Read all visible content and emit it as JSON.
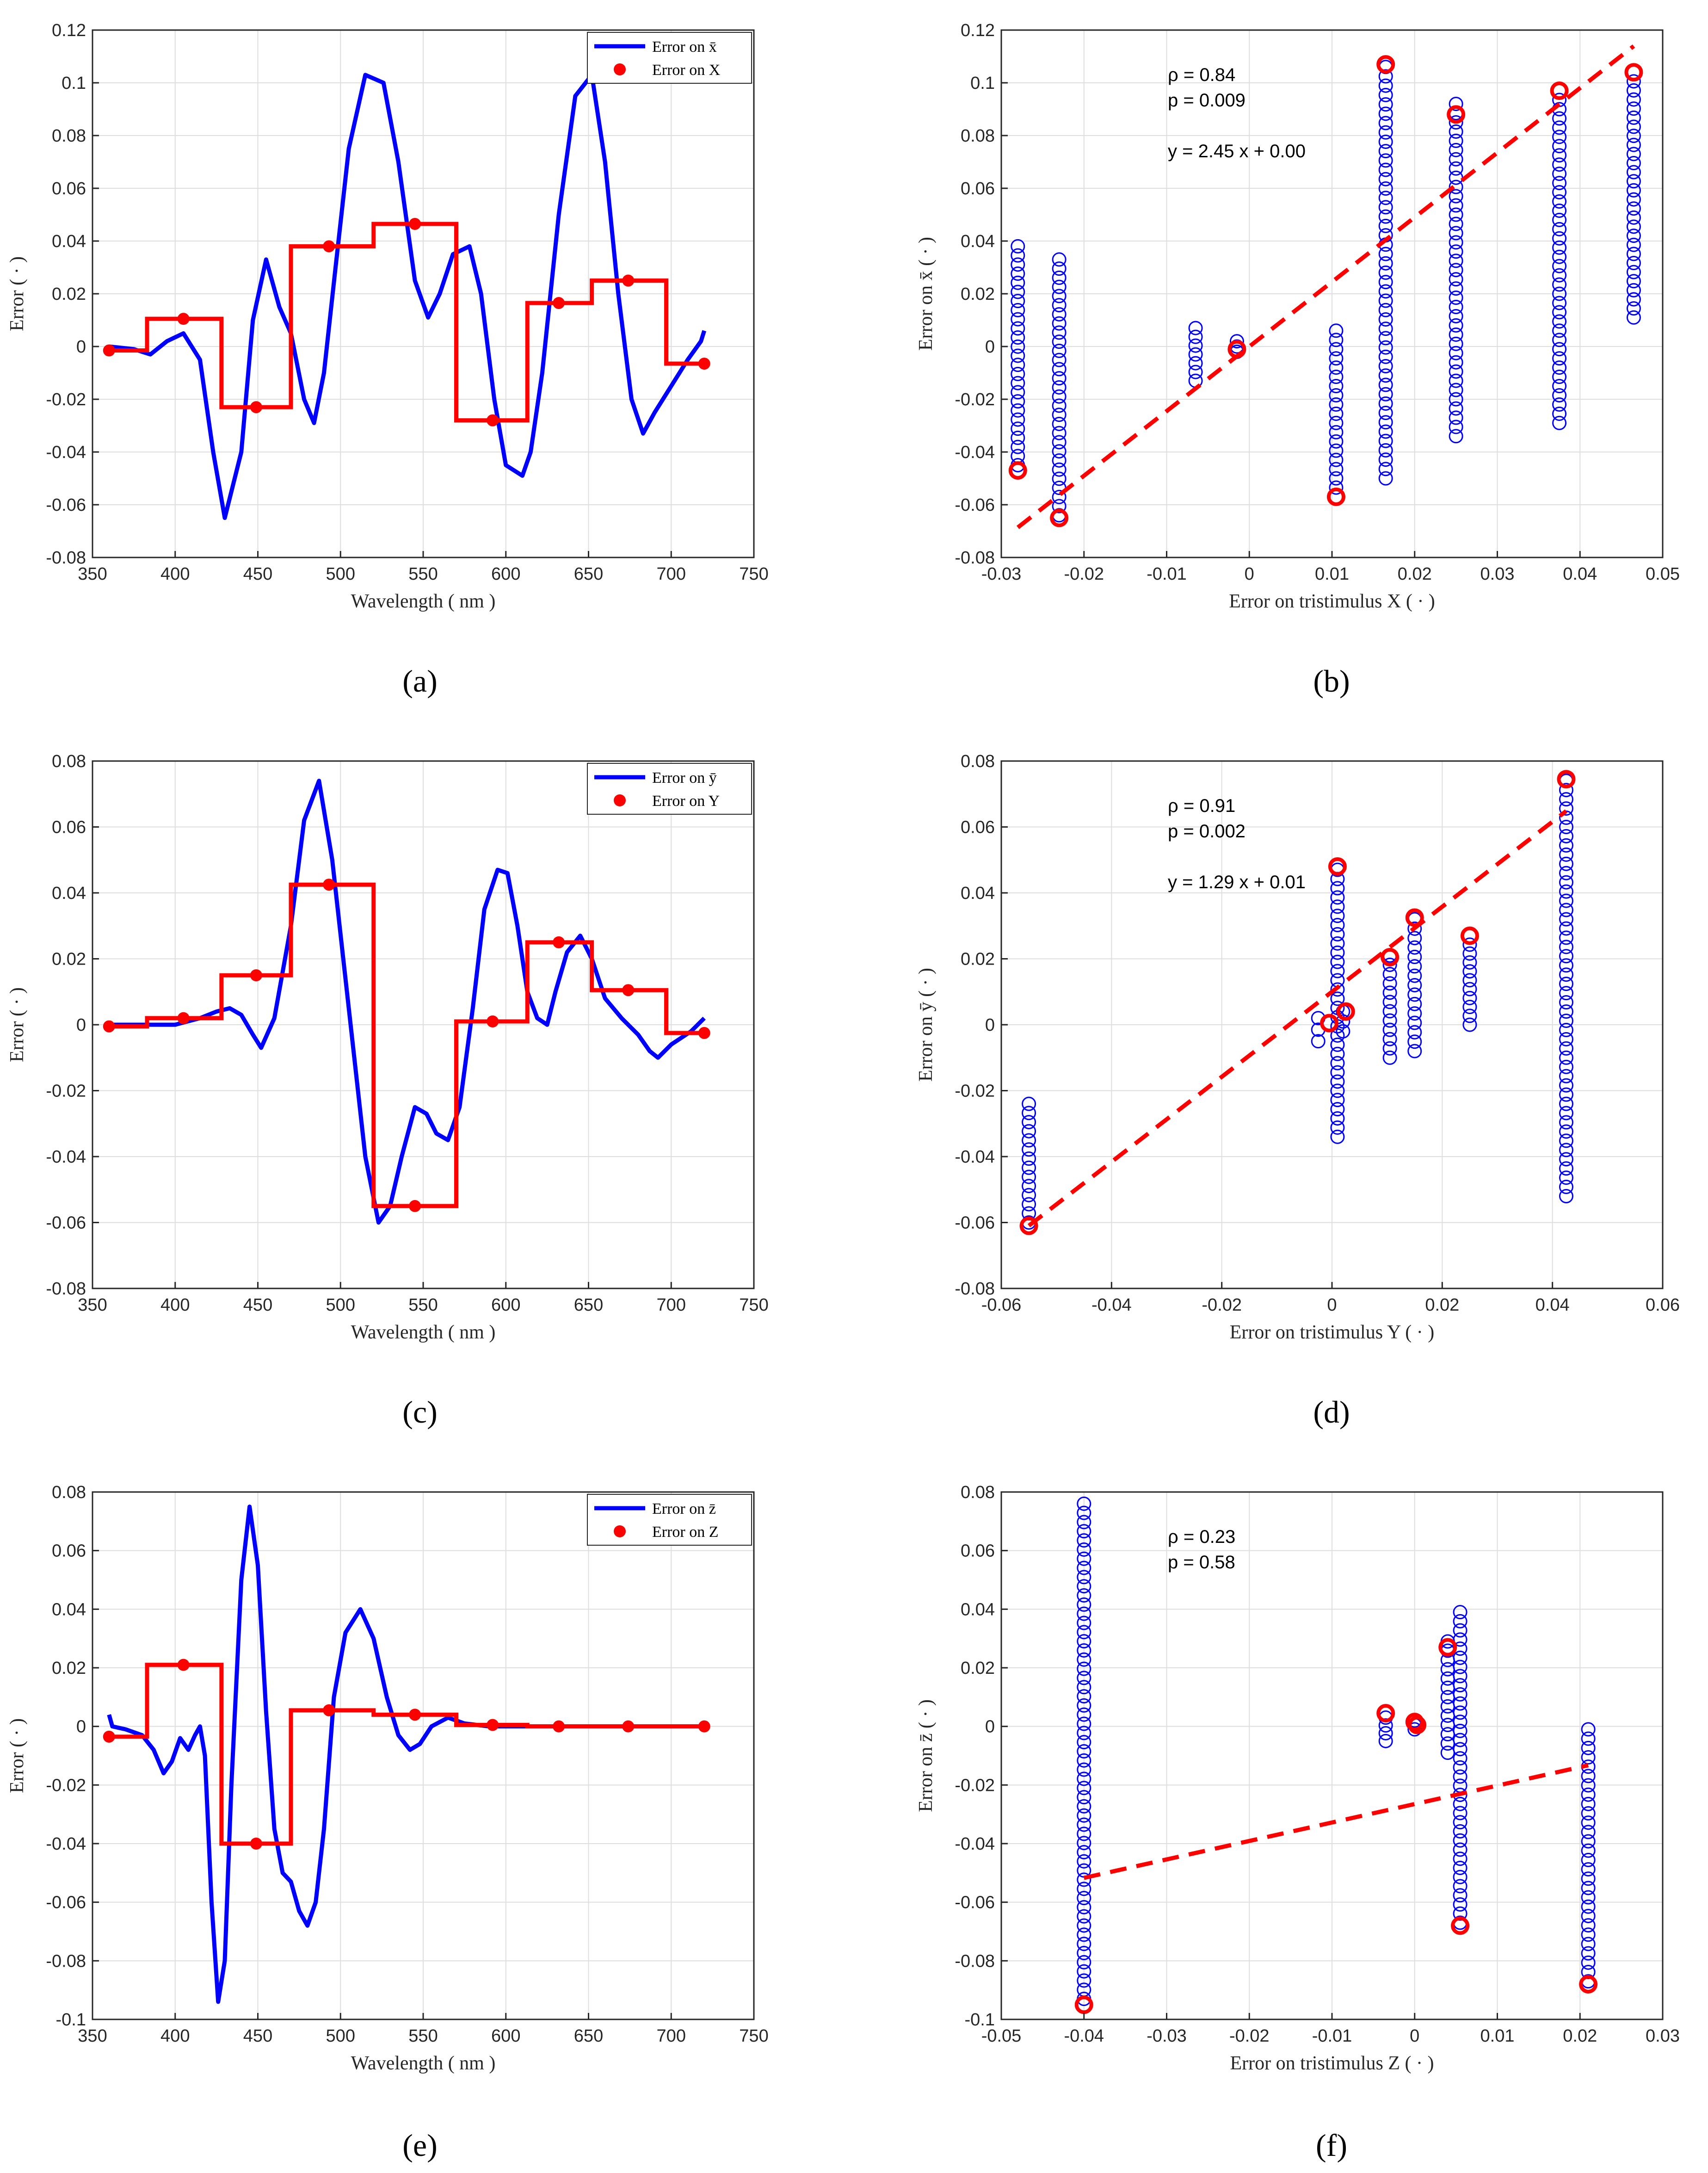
{
  "chart_data": [
    {
      "type": "line",
      "panel": "(a)",
      "xlabel": "Wavelength ( nm )",
      "ylabel": "Error   ( · )",
      "xlim": [
        350,
        750
      ],
      "ylim": [
        -0.08,
        0.12
      ],
      "xticks": [
        350,
        400,
        450,
        500,
        550,
        600,
        650,
        700,
        750
      ],
      "xtick_labels": [
        "350",
        "400",
        "450",
        "500",
        "550",
        "600",
        "650",
        "700",
        "750"
      ],
      "yticks": [
        -0.08,
        -0.06,
        -0.04,
        -0.02,
        0,
        0.02,
        0.04,
        0.06,
        0.08,
        0.1,
        0.12
      ],
      "ytick_labels": [
        "-0.08",
        "-0.06",
        "-0.04",
        "-0.02",
        "0",
        "0.02",
        "0.04",
        "0.06",
        "0.08",
        "0.1",
        "0.12"
      ],
      "legend": {
        "position": "top-right",
        "entries": [
          "Error on x̄",
          "Error on X"
        ]
      },
      "series": [
        {
          "name": "Error on x̄",
          "style": "line",
          "color": "#0000FF",
          "x": [
            360,
            375,
            385,
            395,
            405,
            415,
            423,
            430,
            440,
            447,
            455,
            463,
            470,
            478,
            484,
            490,
            497,
            505,
            515,
            526,
            535,
            545,
            553,
            560,
            568,
            578,
            585,
            593,
            600,
            610,
            615,
            622,
            632,
            642,
            652,
            660,
            668,
            676,
            683,
            690,
            700,
            710,
            718,
            720
          ],
          "y": [
            0,
            -0.001,
            -0.003,
            0.002,
            0.005,
            -0.005,
            -0.04,
            -0.065,
            -0.04,
            0.01,
            0.033,
            0.015,
            0.005,
            -0.02,
            -0.029,
            -0.01,
            0.03,
            0.075,
            0.103,
            0.1,
            0.07,
            0.025,
            0.011,
            0.02,
            0.035,
            0.038,
            0.02,
            -0.02,
            -0.045,
            -0.049,
            -0.04,
            -0.01,
            0.05,
            0.095,
            0.103,
            0.07,
            0.02,
            -0.02,
            -0.033,
            -0.025,
            -0.015,
            -0.005,
            0.002,
            0.006
          ]
        },
        {
          "name": "Error on X",
          "style": "step",
          "color": "#FF0000",
          "edges": [
            360,
            383,
            428,
            470,
            520,
            570,
            613,
            652,
            697,
            720
          ],
          "values": [
            -0.0015,
            0.0105,
            -0.023,
            0.038,
            0.0465,
            -0.028,
            0.0165,
            0.025,
            -0.0065
          ]
        },
        {
          "name": "Error on X",
          "style": "markers",
          "color": "#FF0000",
          "x": [
            360,
            405,
            449,
            493,
            545,
            592,
            632,
            674,
            720
          ],
          "y": [
            -0.0015,
            0.0105,
            -0.023,
            0.038,
            0.0465,
            -0.028,
            0.0165,
            0.025,
            -0.0065
          ]
        }
      ]
    },
    {
      "type": "scatter",
      "panel": "(b)",
      "xlabel": "Error on tristimulus X   ( · )",
      "ylabel": "Error on x̄   ( · )",
      "xlim": [
        -0.03,
        0.05
      ],
      "ylim": [
        -0.08,
        0.12
      ],
      "xticks": [
        -0.03,
        -0.02,
        -0.01,
        0,
        0.01,
        0.02,
        0.03,
        0.04,
        0.05
      ],
      "xtick_labels": [
        "-0.03",
        "-0.02",
        "-0.01",
        "0",
        "0.01",
        "0.02",
        "0.03",
        "0.04",
        "0.05"
      ],
      "yticks": [
        -0.08,
        -0.06,
        -0.04,
        -0.02,
        0,
        0.02,
        0.04,
        0.06,
        0.08,
        0.1,
        0.12
      ],
      "ytick_labels": [
        "-0.08",
        "-0.06",
        "-0.04",
        "-0.02",
        "0",
        "0.02",
        "0.04",
        "0.06",
        "0.08",
        "0.1",
        "0.12"
      ],
      "annotations": [
        "ρ = 0.84",
        "p = 0.009",
        "y = 2.45 x + 0.00"
      ],
      "fit": {
        "slope": 2.45,
        "intercept": 0.0,
        "x_range": [
          -0.028,
          0.0465
        ]
      },
      "columns": [
        {
          "x": -0.028,
          "ymin": -0.045,
          "ymax": 0.038
        },
        {
          "x": -0.023,
          "ymin": -0.064,
          "ymax": 0.033
        },
        {
          "x": -0.0065,
          "ymin": -0.013,
          "ymax": 0.007
        },
        {
          "x": -0.0015,
          "ymin": -0.002,
          "ymax": 0.002
        },
        {
          "x": 0.0105,
          "ymin": -0.057,
          "ymax": 0.006
        },
        {
          "x": 0.0165,
          "ymin": -0.05,
          "ymax": 0.106
        },
        {
          "x": 0.025,
          "ymin": -0.034,
          "ymax": 0.092
        },
        {
          "x": 0.0375,
          "ymin": -0.029,
          "ymax": 0.097
        },
        {
          "x": 0.0465,
          "ymin": 0.011,
          "ymax": 0.104
        }
      ],
      "highlights": {
        "x": [
          -0.028,
          -0.023,
          -0.0015,
          0.0105,
          0.0165,
          0.025,
          0.0375,
          0.0465
        ],
        "y": [
          -0.047,
          -0.065,
          -0.001,
          -0.057,
          0.107,
          0.088,
          0.097,
          0.104
        ]
      }
    },
    {
      "type": "line",
      "panel": "(c)",
      "xlabel": "Wavelength ( nm )",
      "ylabel": "Error   ( · )",
      "xlim": [
        350,
        750
      ],
      "ylim": [
        -0.08,
        0.08
      ],
      "xticks": [
        350,
        400,
        450,
        500,
        550,
        600,
        650,
        700,
        750
      ],
      "xtick_labels": [
        "350",
        "400",
        "450",
        "500",
        "550",
        "600",
        "650",
        "700",
        "750"
      ],
      "yticks": [
        -0.08,
        -0.06,
        -0.04,
        -0.02,
        0,
        0.02,
        0.04,
        0.06,
        0.08
      ],
      "ytick_labels": [
        "-0.08",
        "-0.06",
        "-0.04",
        "-0.02",
        "0",
        "0.02",
        "0.04",
        "0.06",
        "0.08"
      ],
      "legend": {
        "position": "top-right",
        "entries": [
          "Error on ȳ",
          "Error on Y"
        ]
      },
      "series": [
        {
          "name": "Error on ȳ",
          "style": "line",
          "color": "#0000FF",
          "x": [
            360,
            380,
            400,
            415,
            425,
            433,
            440,
            447,
            452,
            460,
            470,
            478,
            487,
            495,
            505,
            515,
            523,
            530,
            537,
            545,
            552,
            558,
            565,
            572,
            580,
            587,
            595,
            601,
            607,
            613,
            619,
            625,
            630,
            637,
            645,
            652,
            660,
            670,
            680,
            687,
            692,
            700,
            712,
            720
          ],
          "y": [
            0,
            0,
            0,
            0.002,
            0.004,
            0.005,
            0.003,
            -0.003,
            -0.007,
            0.002,
            0.03,
            0.062,
            0.074,
            0.05,
            0.005,
            -0.04,
            -0.06,
            -0.055,
            -0.04,
            -0.025,
            -0.027,
            -0.033,
            -0.035,
            -0.025,
            0.005,
            0.035,
            0.047,
            0.046,
            0.03,
            0.01,
            0.002,
            0,
            0.01,
            0.022,
            0.027,
            0.02,
            0.008,
            0.002,
            -0.003,
            -0.008,
            -0.01,
            -0.006,
            -0.002,
            0.002
          ]
        },
        {
          "name": "Error on Y",
          "style": "step",
          "color": "#FF0000",
          "edges": [
            360,
            383,
            428,
            470,
            520,
            570,
            613,
            652,
            697,
            720
          ],
          "values": [
            -0.0005,
            0.002,
            0.015,
            0.0425,
            -0.055,
            0.001,
            0.025,
            0.0105,
            -0.0025
          ]
        },
        {
          "name": "Error on Y",
          "style": "markers",
          "color": "#FF0000",
          "x": [
            360,
            405,
            449,
            493,
            545,
            592,
            632,
            674,
            720
          ],
          "y": [
            -0.0005,
            0.002,
            0.015,
            0.0425,
            -0.055,
            0.001,
            0.025,
            0.0105,
            -0.0025
          ]
        }
      ]
    },
    {
      "type": "scatter",
      "panel": "(d)",
      "xlabel": "Error on tristimulus Y   ( · )",
      "ylabel": "Error on ȳ   ( · )",
      "xlim": [
        -0.06,
        0.06
      ],
      "ylim": [
        -0.08,
        0.08
      ],
      "xticks": [
        -0.06,
        -0.04,
        -0.02,
        0,
        0.02,
        0.04,
        0.06
      ],
      "xtick_labels": [
        "-0.06",
        "-0.04",
        "-0.02",
        "0",
        "0.02",
        "0.04",
        "0.06"
      ],
      "yticks": [
        -0.08,
        -0.06,
        -0.04,
        -0.02,
        0,
        0.02,
        0.04,
        0.06,
        0.08
      ],
      "ytick_labels": [
        "-0.08",
        "-0.06",
        "-0.04",
        "-0.02",
        "0",
        "0.02",
        "0.04",
        "0.06",
        "0.08"
      ],
      "annotations": [
        "ρ = 0.91",
        "p = 0.002",
        "y = 1.29 x + 0.01"
      ],
      "fit": {
        "slope": 1.29,
        "intercept": 0.01,
        "x_range": [
          -0.055,
          0.0425
        ]
      },
      "columns": [
        {
          "x": -0.055,
          "ymin": -0.06,
          "ymax": -0.024
        },
        {
          "x": -0.0025,
          "ymin": -0.005,
          "ymax": 0.002
        },
        {
          "x": 0.001,
          "ymin": -0.034,
          "ymax": 0.047
        },
        {
          "x": 0.002,
          "ymin": -0.002,
          "ymax": 0.004
        },
        {
          "x": 0.0105,
          "ymin": -0.01,
          "ymax": 0.021
        },
        {
          "x": 0.015,
          "ymin": -0.008,
          "ymax": 0.032
        },
        {
          "x": 0.025,
          "ymin": 0.0,
          "ymax": 0.027
        },
        {
          "x": 0.0425,
          "ymin": -0.052,
          "ymax": 0.074
        }
      ],
      "highlights": {
        "x": [
          -0.055,
          -0.0005,
          0.001,
          0.0025,
          0.0105,
          0.015,
          0.025,
          0.0425
        ],
        "y": [
          -0.061,
          0.0005,
          0.048,
          0.004,
          0.0205,
          0.0325,
          0.027,
          0.0745
        ]
      }
    },
    {
      "type": "line",
      "panel": "(e)",
      "xlabel": "Wavelength ( nm )",
      "ylabel": "Error   ( · )",
      "xlim": [
        350,
        750
      ],
      "ylim": [
        -0.1,
        0.08
      ],
      "xticks": [
        350,
        400,
        450,
        500,
        550,
        600,
        650,
        700,
        750
      ],
      "xtick_labels": [
        "350",
        "400",
        "450",
        "500",
        "550",
        "600",
        "650",
        "700",
        "750"
      ],
      "yticks": [
        -0.1,
        -0.08,
        -0.06,
        -0.04,
        -0.02,
        0,
        0.02,
        0.04,
        0.06,
        0.08
      ],
      "ytick_labels": [
        "-0.1",
        "-0.08",
        "-0.06",
        "-0.04",
        "-0.02",
        "0",
        "0.02",
        "0.04",
        "0.06",
        "0.08"
      ],
      "legend": {
        "position": "top-right",
        "entries": [
          "Error on z̄",
          "Error on Z"
        ]
      },
      "series": [
        {
          "name": "Error on z̄",
          "style": "line",
          "color": "#0000FF",
          "x": [
            360,
            362,
            370,
            380,
            387,
            393,
            398,
            403,
            408,
            412,
            415,
            418,
            422,
            426,
            430,
            434,
            440,
            445,
            450,
            455,
            460,
            465,
            470,
            475,
            480,
            485,
            490,
            496,
            503,
            512,
            520,
            528,
            535,
            542,
            548,
            555,
            565,
            575,
            590,
            610,
            640,
            680,
            720
          ],
          "y": [
            0.004,
            0,
            -0.001,
            -0.003,
            -0.008,
            -0.016,
            -0.012,
            -0.004,
            -0.008,
            -0.003,
            0,
            -0.01,
            -0.06,
            -0.094,
            -0.08,
            -0.02,
            0.05,
            0.075,
            0.055,
            0.005,
            -0.035,
            -0.05,
            -0.053,
            -0.063,
            -0.068,
            -0.06,
            -0.035,
            0.01,
            0.032,
            0.04,
            0.03,
            0.01,
            -0.003,
            -0.008,
            -0.006,
            0,
            0.003,
            0.001,
            0,
            0,
            0,
            0,
            0
          ]
        },
        {
          "name": "Error on Z",
          "style": "step",
          "color": "#FF0000",
          "edges": [
            360,
            383,
            428,
            470,
            520,
            570,
            613,
            652,
            697,
            720
          ],
          "values": [
            -0.0035,
            0.021,
            -0.04,
            0.0055,
            0.004,
            0.0005,
            0.0,
            0.0,
            0.0
          ]
        },
        {
          "name": "Error on Z",
          "style": "markers",
          "color": "#FF0000",
          "x": [
            360,
            405,
            449,
            493,
            545,
            592,
            632,
            674,
            720
          ],
          "y": [
            -0.0035,
            0.021,
            -0.04,
            0.0055,
            0.004,
            0.0005,
            0.0,
            0.0,
            0.0
          ]
        }
      ]
    },
    {
      "type": "scatter",
      "panel": "(f)",
      "xlabel": "Error on tristimulus Z   ( · )",
      "ylabel": "Error on z̄   ( · )",
      "xlim": [
        -0.05,
        0.03
      ],
      "ylim": [
        -0.1,
        0.08
      ],
      "xticks": [
        -0.05,
        -0.04,
        -0.03,
        -0.02,
        -0.01,
        0,
        0.01,
        0.02,
        0.03
      ],
      "xtick_labels": [
        "-0.05",
        "-0.04",
        "-0.03",
        "-0.02",
        "-0.01",
        "0",
        "0.01",
        "0.02",
        "0.03"
      ],
      "yticks": [
        -0.1,
        -0.08,
        -0.06,
        -0.04,
        -0.02,
        0,
        0.02,
        0.04,
        0.06,
        0.08
      ],
      "ytick_labels": [
        "-0.1",
        "-0.08",
        "-0.06",
        "-0.04",
        "-0.02",
        "0",
        "0.02",
        "0.04",
        "0.06",
        "0.08"
      ],
      "annotations": [
        "ρ = 0.23",
        "p = 0.58"
      ],
      "fit": {
        "slope": 0.63,
        "intercept": -0.0265,
        "x_range": [
          -0.04,
          0.021
        ]
      },
      "columns": [
        {
          "x": -0.04,
          "ymin": -0.093,
          "ymax": 0.076
        },
        {
          "x": -0.0035,
          "ymin": -0.005,
          "ymax": 0.003
        },
        {
          "x": 0.0,
          "ymin": -0.001,
          "ymax": 0.002
        },
        {
          "x": 0.004,
          "ymin": -0.009,
          "ymax": 0.029
        },
        {
          "x": 0.0055,
          "ymin": -0.067,
          "ymax": 0.039
        },
        {
          "x": 0.021,
          "ymin": -0.087,
          "ymax": -0.001
        }
      ],
      "highlights": {
        "x": [
          -0.04,
          -0.0035,
          0.0,
          0.0003,
          0.004,
          0.0055,
          0.021
        ],
        "y": [
          -0.095,
          0.0045,
          0.0015,
          0.0005,
          0.027,
          -0.068,
          -0.088
        ]
      }
    }
  ]
}
